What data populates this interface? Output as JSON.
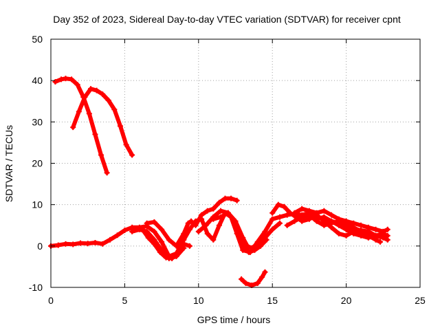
{
  "chart_data": {
    "type": "scatter",
    "title": "Day 352 of 2023, Sidereal Day-to-day VTEC variation (SDTVAR) for receiver cpnt",
    "xlabel": "GPS time / hours",
    "ylabel": "SDTVAR / TECUs",
    "xlim": [
      0,
      25
    ],
    "ylim": [
      -10,
      50
    ],
    "xticks": [
      0,
      5,
      10,
      15,
      20,
      25
    ],
    "yticks": [
      -10,
      0,
      10,
      20,
      30,
      40,
      50
    ],
    "grid": true,
    "legend": "none",
    "colors": {
      "series": "#ff0000",
      "axis": "#000000",
      "grid": "#a0a0a0"
    },
    "series": [
      {
        "name": "arc-high-a",
        "points": [
          [
            0.3,
            39.7
          ],
          [
            0.7,
            40.3
          ],
          [
            1.0,
            40.5
          ],
          [
            1.4,
            40.3
          ],
          [
            1.8,
            39.0
          ],
          [
            2.2,
            36.0
          ],
          [
            2.6,
            32.0
          ],
          [
            3.0,
            27.0
          ],
          [
            3.4,
            22.0
          ],
          [
            3.8,
            17.7
          ]
        ]
      },
      {
        "name": "arc-high-b",
        "points": [
          [
            1.5,
            28.7
          ],
          [
            1.9,
            32.5
          ],
          [
            2.3,
            36.0
          ],
          [
            2.7,
            38.0
          ],
          [
            3.1,
            37.6
          ],
          [
            3.5,
            36.7
          ],
          [
            3.9,
            35.2
          ],
          [
            4.3,
            33.0
          ],
          [
            4.7,
            29.0
          ],
          [
            5.1,
            24.5
          ],
          [
            5.5,
            22.0
          ]
        ]
      },
      {
        "name": "base-track",
        "points": [
          [
            0.0,
            0.0
          ],
          [
            0.5,
            0.2
          ],
          [
            1.0,
            0.5
          ],
          [
            1.5,
            0.4
          ],
          [
            2.0,
            0.7
          ],
          [
            2.5,
            0.6
          ],
          [
            3.0,
            0.8
          ],
          [
            3.5,
            0.5
          ],
          [
            4.0,
            1.5
          ],
          [
            4.5,
            2.6
          ],
          [
            5.0,
            3.8
          ],
          [
            5.5,
            4.5
          ],
          [
            6.0,
            4.5
          ],
          [
            6.5,
            4.8
          ],
          [
            7.0,
            3.5
          ],
          [
            7.5,
            1.0
          ],
          [
            8.0,
            -2.5
          ],
          [
            8.5,
            -1.8
          ],
          [
            9.0,
            1.5
          ],
          [
            9.4,
            4.0
          ],
          [
            9.8,
            6.0
          ],
          [
            10.2,
            6.5
          ],
          [
            10.6,
            3.0
          ],
          [
            11.0,
            1.5
          ],
          [
            11.4,
            5.0
          ],
          [
            11.8,
            8.0
          ],
          [
            12.2,
            7.0
          ],
          [
            12.6,
            3.0
          ],
          [
            13.0,
            -1.0
          ],
          [
            13.5,
            -1.5
          ],
          [
            14.0,
            1.0
          ],
          [
            14.5,
            3.5
          ],
          [
            15.0,
            6.5
          ],
          [
            15.5,
            7.0
          ],
          [
            16.0,
            7.5
          ],
          [
            16.5,
            7.8
          ],
          [
            17.0,
            7.5
          ],
          [
            17.5,
            8.0
          ],
          [
            18.0,
            7.0
          ],
          [
            18.5,
            6.5
          ],
          [
            19.0,
            6.0
          ],
          [
            19.5,
            5.5
          ],
          [
            20.0,
            4.5
          ],
          [
            20.5,
            4.2
          ],
          [
            21.0,
            3.8
          ],
          [
            21.5,
            3.5
          ],
          [
            22.0,
            2.5
          ],
          [
            22.5,
            2.0
          ],
          [
            22.8,
            1.5
          ]
        ]
      },
      {
        "name": "track-b",
        "points": [
          [
            5.5,
            3.5
          ],
          [
            6.0,
            4.0
          ],
          [
            6.5,
            3.5
          ],
          [
            7.0,
            1.5
          ],
          [
            7.5,
            -1.0
          ],
          [
            8.0,
            -3.0
          ],
          [
            8.5,
            -2.5
          ],
          [
            9.0,
            -0.5
          ]
        ]
      },
      {
        "name": "track-c",
        "points": [
          [
            6.2,
            4.0
          ],
          [
            6.6,
            2.0
          ],
          [
            7.0,
            0.5
          ],
          [
            7.4,
            -1.5
          ],
          [
            7.8,
            -2.8
          ],
          [
            8.2,
            -3.0
          ],
          [
            8.6,
            -1.5
          ],
          [
            9.0,
            0.5
          ],
          [
            9.4,
            0.0
          ]
        ]
      },
      {
        "name": "track-d",
        "points": [
          [
            6.5,
            5.5
          ],
          [
            7.0,
            5.8
          ],
          [
            7.5,
            4.0
          ],
          [
            8.0,
            1.5
          ],
          [
            8.5,
            0.0
          ],
          [
            9.0,
            3.0
          ],
          [
            9.3,
            5.5
          ],
          [
            9.5,
            6.0
          ]
        ]
      },
      {
        "name": "track-e",
        "points": [
          [
            9.8,
            5.0
          ],
          [
            10.2,
            7.5
          ],
          [
            10.6,
            8.5
          ],
          [
            11.0,
            9.0
          ],
          [
            11.4,
            10.5
          ],
          [
            11.8,
            11.5
          ],
          [
            12.2,
            11.5
          ],
          [
            12.6,
            11.0
          ]
        ]
      },
      {
        "name": "track-f",
        "points": [
          [
            11.0,
            6.5
          ],
          [
            11.5,
            7.0
          ],
          [
            12.0,
            8.0
          ],
          [
            12.5,
            6.0
          ],
          [
            13.0,
            2.0
          ],
          [
            13.3,
            0.0
          ],
          [
            13.6,
            -0.5
          ],
          [
            14.0,
            0.5
          ],
          [
            14.5,
            2.0
          ],
          [
            15.0,
            4.0
          ],
          [
            15.5,
            5.5
          ]
        ]
      },
      {
        "name": "track-g",
        "points": [
          [
            10.0,
            3.5
          ],
          [
            10.5,
            5.0
          ],
          [
            11.0,
            7.0
          ],
          [
            11.5,
            8.5
          ],
          [
            12.0,
            8.0
          ],
          [
            12.5,
            5.5
          ],
          [
            13.0,
            1.0
          ],
          [
            13.4,
            -1.5
          ],
          [
            13.8,
            -1.0
          ],
          [
            14.2,
            0.0
          ],
          [
            14.6,
            1.5
          ]
        ]
      },
      {
        "name": "track-h",
        "points": [
          [
            15.0,
            8.0
          ],
          [
            15.4,
            10.0
          ],
          [
            15.8,
            9.5
          ],
          [
            16.2,
            8.0
          ],
          [
            16.6,
            7.0
          ],
          [
            17.0,
            6.0
          ],
          [
            17.5,
            6.5
          ],
          [
            18.0,
            7.5
          ],
          [
            18.5,
            6.0
          ],
          [
            19.0,
            4.5
          ],
          [
            19.5,
            3.0
          ],
          [
            20.0,
            2.5
          ],
          [
            20.5,
            3.5
          ],
          [
            21.0,
            3.0
          ],
          [
            21.5,
            2.5
          ],
          [
            22.0,
            1.5
          ],
          [
            22.3,
            1.0
          ]
        ]
      },
      {
        "name": "track-i",
        "points": [
          [
            16.0,
            5.0
          ],
          [
            16.5,
            6.0
          ],
          [
            17.0,
            7.0
          ],
          [
            17.5,
            7.5
          ],
          [
            18.0,
            6.0
          ],
          [
            18.5,
            5.0
          ],
          [
            19.0,
            5.5
          ],
          [
            19.5,
            6.0
          ],
          [
            20.0,
            5.5
          ],
          [
            20.5,
            4.5
          ],
          [
            21.0,
            3.5
          ],
          [
            21.5,
            2.5
          ],
          [
            22.0,
            2.0
          ]
        ]
      },
      {
        "name": "track-j",
        "points": [
          [
            16.5,
            8.0
          ],
          [
            17.0,
            9.0
          ],
          [
            17.5,
            8.5
          ],
          [
            18.0,
            8.0
          ],
          [
            18.5,
            8.5
          ],
          [
            19.0,
            7.5
          ],
          [
            19.5,
            6.5
          ],
          [
            20.0,
            6.0
          ],
          [
            20.5,
            5.5
          ],
          [
            21.0,
            5.0
          ],
          [
            21.5,
            4.5
          ],
          [
            22.0,
            4.0
          ],
          [
            22.5,
            3.5
          ],
          [
            22.8,
            4.0
          ]
        ]
      },
      {
        "name": "track-k",
        "points": [
          [
            18.0,
            6.5
          ],
          [
            18.5,
            7.0
          ],
          [
            19.0,
            6.0
          ],
          [
            19.5,
            5.0
          ],
          [
            20.0,
            4.0
          ],
          [
            20.5,
            3.0
          ],
          [
            21.0,
            2.5
          ],
          [
            21.5,
            2.0
          ],
          [
            22.0,
            2.5
          ],
          [
            22.5,
            3.0
          ],
          [
            22.8,
            2.5
          ]
        ]
      },
      {
        "name": "track-low",
        "points": [
          [
            12.9,
            -8.0
          ],
          [
            13.2,
            -9.0
          ],
          [
            13.6,
            -9.5
          ],
          [
            14.0,
            -9.0
          ],
          [
            14.3,
            -7.5
          ],
          [
            14.5,
            -6.3
          ]
        ]
      }
    ]
  }
}
